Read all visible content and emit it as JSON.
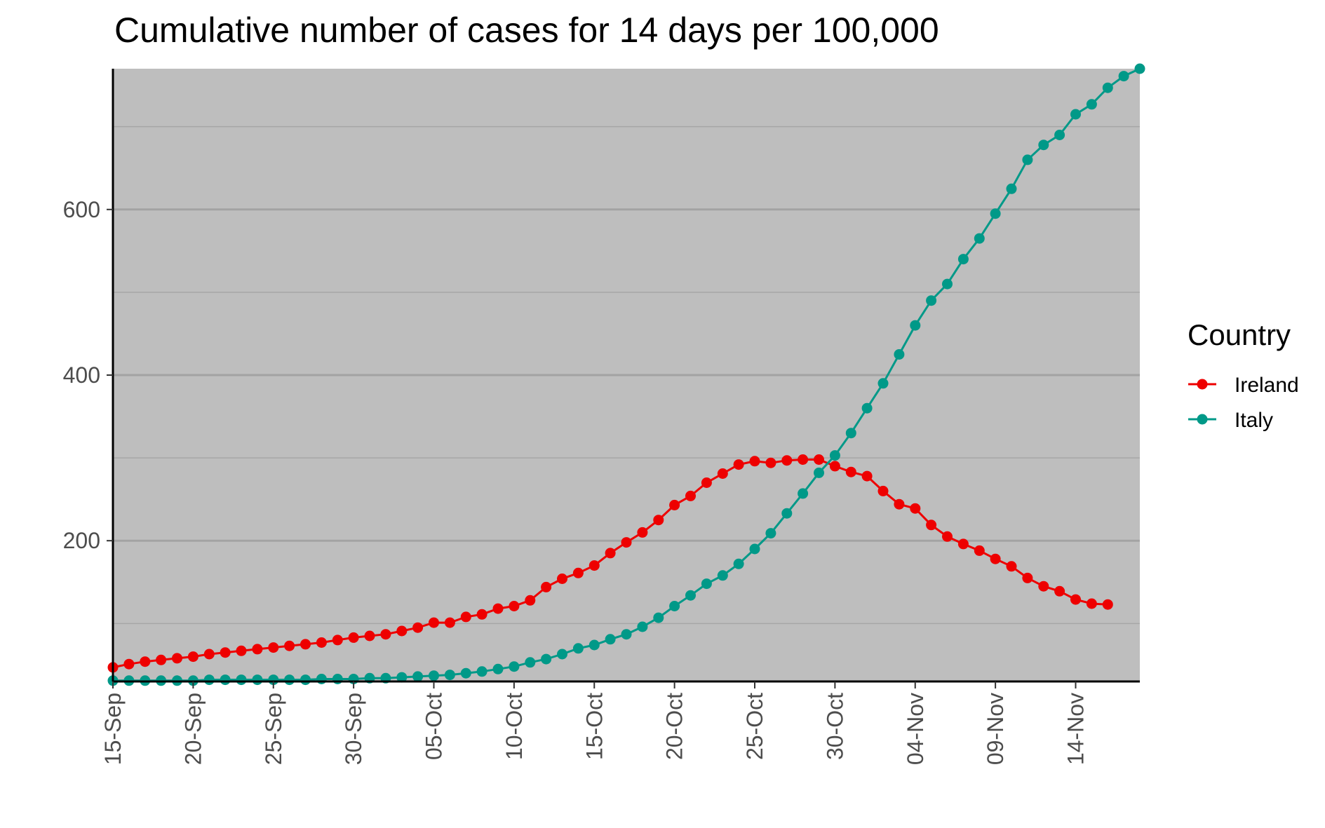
{
  "chart_data": {
    "type": "line",
    "title": "Cumulative number of cases for 14 days per 100,000",
    "xlabel": "",
    "ylabel": "",
    "x_start": "2020-09-15",
    "x_ticks": [
      "15-Sep",
      "20-Sep",
      "25-Sep",
      "30-Sep",
      "05-Oct",
      "10-Oct",
      "15-Oct",
      "20-Oct",
      "25-Oct",
      "30-Oct",
      "04-Nov",
      "09-Nov",
      "14-Nov"
    ],
    "y_ticks": [
      200,
      400,
      600
    ],
    "ylim": [
      30,
      770
    ],
    "grid": true,
    "legend": {
      "title": "Country",
      "placement": "right"
    },
    "series": [
      {
        "name": "Ireland",
        "color": "#ee0000",
        "values": [
          47,
          51,
          54,
          56,
          58,
          60,
          63,
          65,
          67,
          69,
          71,
          73,
          75,
          77,
          80,
          83,
          85,
          87,
          91,
          95,
          101,
          101,
          108,
          111,
          118,
          121,
          128,
          144,
          154,
          161,
          170,
          185,
          198,
          210,
          225,
          243,
          254,
          270,
          281,
          292,
          296,
          294,
          297,
          298,
          298,
          290,
          283,
          278,
          260,
          244,
          239,
          219,
          205,
          196,
          188,
          178,
          169,
          155,
          145,
          139,
          129,
          124,
          123
        ]
      },
      {
        "name": "Italy",
        "color": "#009988",
        "values": [
          31,
          31,
          31,
          31,
          31,
          31,
          32,
          32,
          32,
          32,
          32,
          32,
          32,
          33,
          33,
          33,
          34,
          34,
          35,
          36,
          37,
          38,
          40,
          42,
          45,
          48,
          53,
          57,
          63,
          70,
          74,
          81,
          87,
          96,
          107,
          121,
          134,
          148,
          158,
          172,
          190,
          209,
          233,
          257,
          282,
          303,
          330,
          360,
          390,
          425,
          460,
          490,
          510,
          540,
          565,
          595,
          625,
          660,
          678,
          690,
          715,
          727,
          747,
          761,
          770
        ]
      }
    ]
  }
}
